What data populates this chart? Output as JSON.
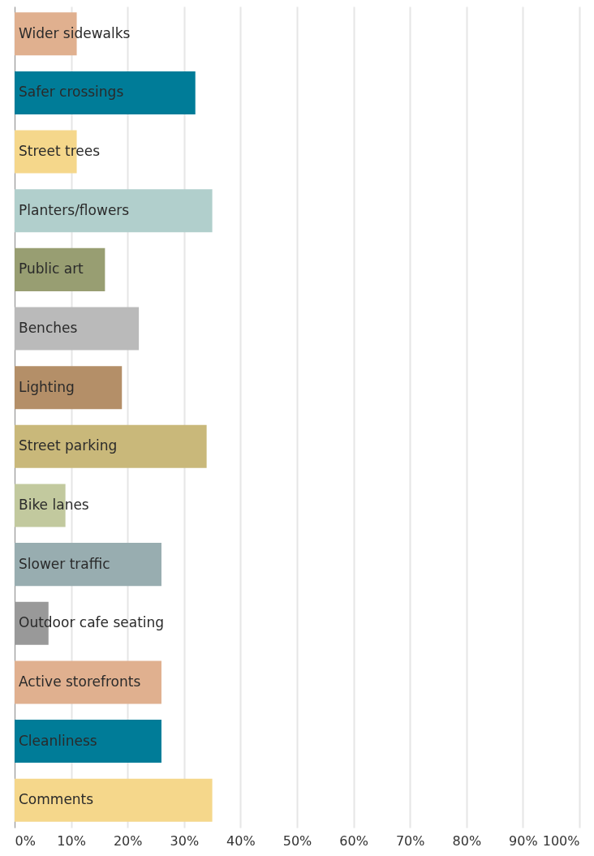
{
  "chart_data": {
    "type": "bar",
    "orientation": "horizontal",
    "categories": [
      "Wider sidewalks",
      "Safer crossings",
      "Street trees",
      "Planters/flowers",
      "Public art",
      "Benches",
      "Lighting",
      "Street parking",
      "Bike lanes",
      "Slower traffic",
      "Outdoor cafe seating",
      "Active storefronts",
      "Cleanliness",
      "Comments"
    ],
    "values": [
      11,
      32,
      11,
      35,
      16,
      22,
      19,
      34,
      9,
      26,
      6,
      26,
      26,
      35
    ],
    "colors": [
      "#e0b08f",
      "#007c98",
      "#f5d78b",
      "#b1cfcc",
      "#989e72",
      "#bababa",
      "#b48f68",
      "#c9b87a",
      "#c2c99e",
      "#98adb0",
      "#999999",
      "#e0b08f",
      "#007c98",
      "#f5d78b"
    ],
    "xlim": [
      0,
      100
    ],
    "xticks": [
      {
        "value": 0,
        "label": "0%"
      },
      {
        "value": 10,
        "label": "10%"
      },
      {
        "value": 20,
        "label": "20%"
      },
      {
        "value": 30,
        "label": "30%"
      },
      {
        "value": 40,
        "label": "40%"
      },
      {
        "value": 50,
        "label": "50%"
      },
      {
        "value": 60,
        "label": "60%"
      },
      {
        "value": 70,
        "label": "70%"
      },
      {
        "value": 80,
        "label": "80%"
      },
      {
        "value": 90,
        "label": "90%"
      },
      {
        "value": 100,
        "label": "100%"
      }
    ],
    "grid": "x",
    "legend": false
  }
}
